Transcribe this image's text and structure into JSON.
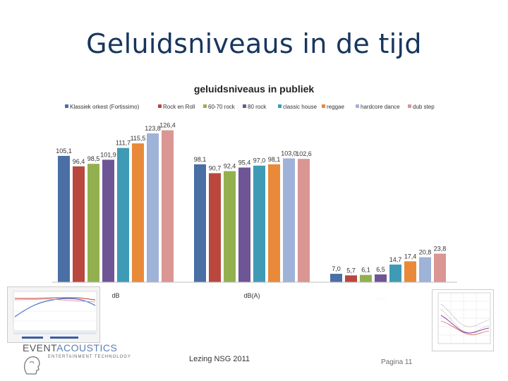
{
  "slide": {
    "title": "Geluidsniveaus in de tijd",
    "footer_center": "Lezing NSG 2011",
    "footer_right": "Pagina 11"
  },
  "logo": {
    "brand_part1": "EVENT",
    "brand_part2": "ACOUSTICS",
    "tagline": "ENTERTAINMENT TECHNOLOGY"
  },
  "chart_data": {
    "type": "bar",
    "title": "geluidsniveaus in publiek",
    "categories": [
      "dB",
      "dB(A)",
      ""
    ],
    "series": [
      {
        "name": "Klassiek orkest (Fortissimo)",
        "color": "#4a6fa5",
        "values": [
          105.1,
          98.1,
          7.0
        ]
      },
      {
        "name": "Rock en Roll",
        "color": "#b9473e",
        "values": [
          96.4,
          90.7,
          5.7
        ]
      },
      {
        "name": "60-70 rock",
        "color": "#93b04f",
        "values": [
          98.5,
          92.4,
          6.1
        ]
      },
      {
        "name": "80 rock",
        "color": "#6e5596",
        "values": [
          101.9,
          95.4,
          6.5
        ]
      },
      {
        "name": "classic house",
        "color": "#3f9ab5",
        "values": [
          111.7,
          97.0,
          14.7
        ]
      },
      {
        "name": "reggae",
        "color": "#e88a3a",
        "values": [
          115.5,
          98.1,
          17.4
        ]
      },
      {
        "name": "hardcore dance",
        "color": "#9fb2d8",
        "values": [
          123.8,
          103.0,
          20.8
        ]
      },
      {
        "name": "dub step",
        "color": "#d99693",
        "values": [
          126.4,
          102.6,
          23.8
        ]
      }
    ],
    "data_labels": [
      [
        "105,1",
        "98,1",
        "7,0"
      ],
      [
        "96,4",
        "90,7",
        "5,7"
      ],
      [
        "98,5",
        "92,4",
        "6,1"
      ],
      [
        "101,9",
        "95,4",
        "6,5"
      ],
      [
        "111,7",
        "97,0",
        "14,7"
      ],
      [
        "115,5",
        "98,1",
        "17,4"
      ],
      [
        "123,8",
        "103,0",
        "20,8"
      ],
      [
        "126,4",
        "102,6",
        "23,8"
      ]
    ],
    "ylim": [
      0,
      135
    ],
    "legend_position": "top",
    "grid": false
  }
}
